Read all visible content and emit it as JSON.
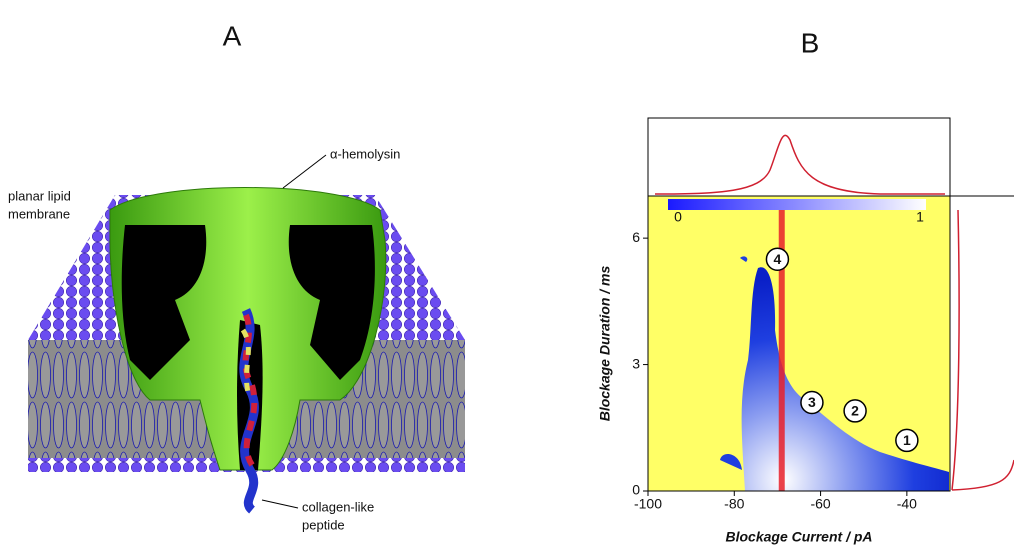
{
  "panel_labels": [
    "A",
    "B"
  ],
  "diagram": {
    "labels": {
      "pore": "α-hemolysin",
      "membrane": [
        "planar lipid",
        "membrane"
      ],
      "peptide": [
        "collagen-like",
        "peptide"
      ]
    }
  },
  "chart_data": {
    "type": "density-map",
    "x_label": "Blockage Current / pA",
    "y_label": "Blockage Duration / ms",
    "xlim": [
      -100,
      -30
    ],
    "xticks": [
      -100,
      -80,
      -60,
      -40
    ],
    "ylim": [
      0,
      7
    ],
    "yticks": [
      0,
      3,
      6
    ],
    "colorbar": {
      "ticks": [
        0,
        1
      ],
      "colors": [
        "#1a1aff",
        "#ffffff"
      ]
    },
    "background": "#ffff66",
    "reference_line_x": -69,
    "reference_line_color": "#e8202a",
    "annotations": [
      {
        "text": "4",
        "x": -70,
        "y": 5.5
      },
      {
        "text": "3",
        "x": -62,
        "y": 2.1
      },
      {
        "text": "2",
        "x": -52,
        "y": 1.9
      },
      {
        "text": "1",
        "x": -40,
        "y": 1.2
      }
    ]
  }
}
